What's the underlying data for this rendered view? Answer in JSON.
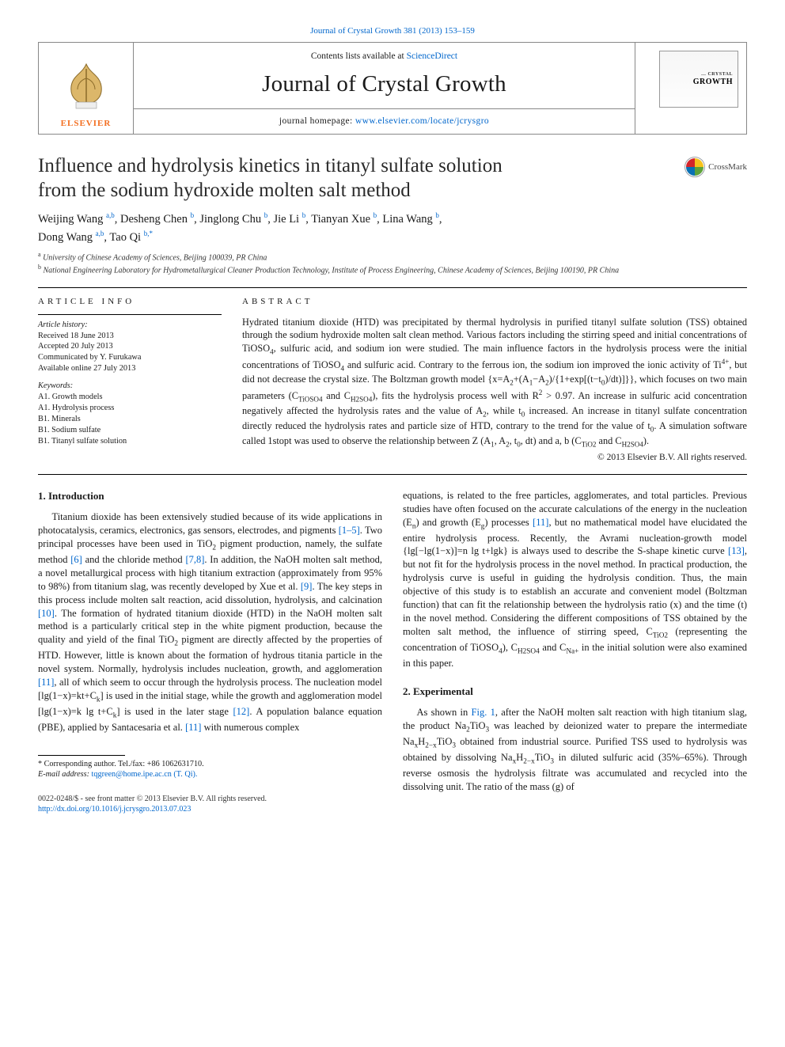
{
  "running_header": "Journal of Crystal Growth 381 (2013) 153–159",
  "masthead": {
    "contents_prefix": "Contents lists available at ",
    "contents_link": "ScienceDirect",
    "journal_title": "Journal of Crystal Growth",
    "homepage_prefix": "journal homepage: ",
    "homepage_url": "www.elsevier.com/locate/jcrysgro",
    "publisher_word": "ELSEVIER",
    "cover_line1": "… CRYSTAL",
    "cover_line2": "GROWTH"
  },
  "colors": {
    "link": "#0066cc",
    "elsevier_orange": "#f36f21",
    "crossmark_red": "#d4252a",
    "crossmark_blue": "#0a71b4",
    "crossmark_yellow": "#f6c21c",
    "crossmark_green": "#5ea33a",
    "rule": "#000000"
  },
  "title_line1": "Influence and hydrolysis kinetics in titanyl sulfate solution",
  "title_line2": "from the sodium hydroxide molten salt method",
  "crossmark_label": "CrossMark",
  "authors_html_parts": {
    "a1": "Weijing Wang",
    "a1_sup": "a,b",
    "a2": "Desheng Chen",
    "a2_sup": "b",
    "a3": "Jinglong Chu",
    "a3_sup": "b",
    "a4": "Jie Li",
    "a4_sup": "b",
    "a5": "Tianyan Xue",
    "a5_sup": "b",
    "a6": "Lina Wang",
    "a6_sup": "b",
    "a7": "Dong Wang",
    "a7_sup": "a,b",
    "a8": "Tao Qi",
    "a8_sup": "b,*"
  },
  "affiliations": {
    "a": "University of Chinese Academy of Sciences, Beijing 100039, PR China",
    "b": "National Engineering Laboratory for Hydrometallurgical Cleaner Production Technology, Institute of Process Engineering, Chinese Academy of Sciences, Beijing 100190, PR China"
  },
  "article_info": {
    "heading": "article info",
    "history_label": "Article history:",
    "received": "Received 18 June 2013",
    "accepted": "Accepted 20 July 2013",
    "communicated": "Communicated by Y. Furukawa",
    "online": "Available online 27 July 2013",
    "keywords_label": "Keywords:",
    "keywords": [
      "A1. Growth models",
      "A1. Hydrolysis process",
      "B1. Minerals",
      "B1. Sodium sulfate",
      "B1. Titanyl sulfate solution"
    ]
  },
  "abstract": {
    "heading": "abstract",
    "text_html": "Hydrated titanium dioxide (HTD) was precipitated by thermal hydrolysis in purified titanyl sulfate solution (TSS) obtained through the sodium hydroxide molten salt clean method. Various factors including the stirring speed and initial concentrations of TiOSO<sub>4</sub>, sulfuric acid, and sodium ion were studied. The main influence factors in the hydrolysis process were the initial concentrations of TiOSO<sub>4</sub> and sulfuric acid. Contrary to the ferrous ion, the sodium ion improved the ionic activity of Ti<sup class=\"txt\">4+</sup>, but did not decrease the crystal size. The Boltzman growth model {x=A<sub>2</sub>+(A<sub>1</sub>−A<sub>2</sub>)/{1+exp[(t−t<sub>0</sub>)/dt)]}}, which focuses on two main parameters (C<sub>TiOSO4</sub> and C<sub>H2SO4</sub>), fits the hydrolysis process well with R<sup class=\"txt\">2</sup> &gt; 0.97. An increase in sulfuric acid concentration negatively affected the hydrolysis rates and the value of A<sub>2</sub>, while t<sub>0</sub> increased. An increase in titanyl sulfate concentration directly reduced the hydrolysis rates and particle size of HTD, contrary to the trend for the value of t<sub>0</sub>. A simulation software called 1stopt was used to observe the relationship between Z (A<sub>1</sub>, A<sub>2</sub>, t<sub>0</sub>, dt) and a, b (C<sub>TiO2</sub> and C<sub>H2SO4</sub>).",
    "copyright": "© 2013 Elsevier B.V. All rights reserved."
  },
  "body": {
    "col1": {
      "h": "1.  Introduction",
      "p_html": "Titanium dioxide has been extensively studied because of its wide applications in photocatalysis, ceramics, electronics, gas sensors, electrodes, and pigments <span class=\"link\">[1–5]</span>. Two principal processes have been used in TiO<sub>2</sub> pigment production, namely, the sulfate method <span class=\"link\">[6]</span> and the chloride method <span class=\"link\">[7,8]</span>. In addition, the NaOH molten salt method, a novel metallurgical process with high titanium extraction (approximately from 95% to 98%) from titanium slag, was recently developed by Xue et al. <span class=\"link\">[9]</span>. The key steps in this process include molten salt reaction, acid dissolution, hydrolysis, and calcination <span class=\"link\">[10]</span>. The formation of hydrated titanium dioxide (HTD) in the NaOH molten salt method is a particularly critical step in the white pigment production, because the quality and yield of the final TiO<sub>2</sub> pigment are directly affected by the properties of HTD. However, little is known about the formation of hydrous titania particle in the novel system. Normally, hydrolysis includes nucleation, growth, and agglomeration <span class=\"link\">[11]</span>, all of which seem to occur through the hydrolysis process. The nucleation model [lg(1−x)=kt+C<sub>k</sub>] is used in the initial stage, while the growth and agglomeration model [lg(1−x)=k lg t+C<sub>k</sub>] is used in the later stage <span class=\"link\">[12]</span>. A population balance equation (PBE), applied by Santacesaria et al. <span class=\"link\">[11]</span> with numerous complex"
    },
    "col2": {
      "p1_html": "equations, is related to the free particles, agglomerates, and total particles. Previous studies have often focused on the accurate calculations of the energy in the nucleation (E<sub>n</sub>) and growth (E<sub>g</sub>) processes <span class=\"link\">[11]</span>, but no mathematical model have elucidated the entire hydrolysis process. Recently, the Avrami nucleation-growth model {lg[−lg(1−x)]=n lg t+lgk} is always used to describe the S-shape kinetic curve <span class=\"link\">[13]</span>, but not fit for the hydrolysis process in the novel method. In practical production, the hydrolysis curve is useful in guiding the hydrolysis condition. Thus, the main objective of this study is to establish an accurate and convenient model (Boltzman function) that can fit the relationship between the hydrolysis ratio (x) and the time (t) in the novel method. Considering the different compositions of TSS obtained by the molten salt method, the influence of stirring speed, C<sub>TiO2</sub> (representing the concentration of TiOSO<sub>4</sub>), C<sub>H2SO4</sub> and C<sub>Na+</sub> in the initial solution were also examined in this paper.",
      "h": "2.  Experimental",
      "p2_html": "As shown in <span class=\"link\">Fig. 1</span>, after the NaOH molten salt reaction with high titanium slag, the product Na<sub>2</sub>TiO<sub>3</sub> was leached by deionized water to prepare the intermediate Na<sub>x</sub>H<sub>2−x</sub>TiO<sub>3</sub> obtained from industrial source. Purified TSS used to hydrolysis was obtained by dissolving Na<sub>x</sub>H<sub>2−x</sub>TiO<sub>3</sub> in diluted sulfuric acid (35%–65%). Through reverse osmosis the hydrolysis filtrate was accumulated and recycled into the dissolving unit. The ratio of the mass (g) of"
    }
  },
  "footnotes": {
    "corr": "* Corresponding author. Tel./fax: +86 1062631710.",
    "email_label": "E-mail address: ",
    "email": "tqgreen@home.ipe.ac.cn (T. Qi)."
  },
  "bottom": {
    "left1": "0022-0248/$ - see front matter © 2013 Elsevier B.V. All rights reserved.",
    "left2": "http://dx.doi.org/10.1016/j.jcrysgro.2013.07.023"
  }
}
